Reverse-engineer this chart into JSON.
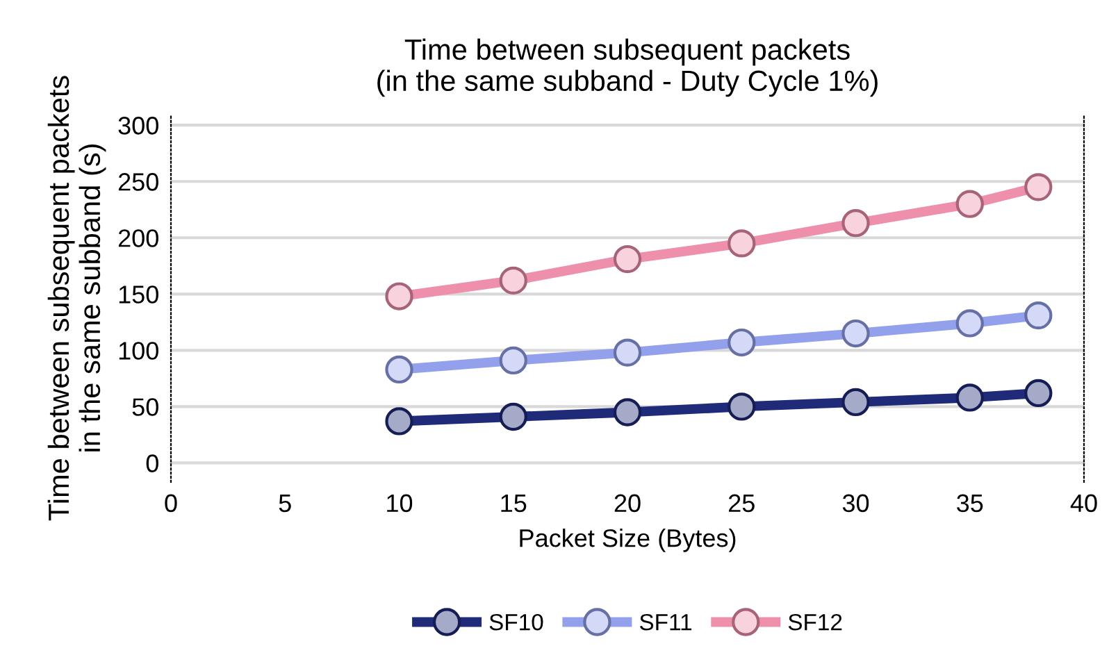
{
  "chart_data": {
    "type": "line",
    "title": "Time between subsequent packets\n(in the same subband - Duty Cycle 1%)",
    "xlabel": "Packet Size (Bytes)",
    "ylabel": "Time between subsequent packets\nin the same subband (s)",
    "x": [
      10,
      15,
      20,
      25,
      30,
      35,
      38
    ],
    "series": [
      {
        "name": "SF10",
        "color": "#1f2a78",
        "values": [
          37,
          41,
          45,
          50,
          54,
          58,
          62
        ]
      },
      {
        "name": "SF11",
        "color": "#93a0ec",
        "values": [
          83,
          91,
          98,
          107,
          115,
          124,
          131
        ]
      },
      {
        "name": "SF12",
        "color": "#ee8fab",
        "values": [
          148,
          162,
          181,
          195,
          213,
          230,
          245
        ]
      }
    ],
    "xlim": [
      0,
      40
    ],
    "xticks": [
      0,
      5,
      10,
      15,
      20,
      25,
      30,
      35,
      40
    ],
    "ylim": [
      -17,
      310
    ],
    "yticks": [
      0,
      50,
      100,
      150,
      200,
      250,
      300
    ],
    "grid": "y",
    "legend": "bottom",
    "marker": "circle",
    "line_style": "solid"
  }
}
